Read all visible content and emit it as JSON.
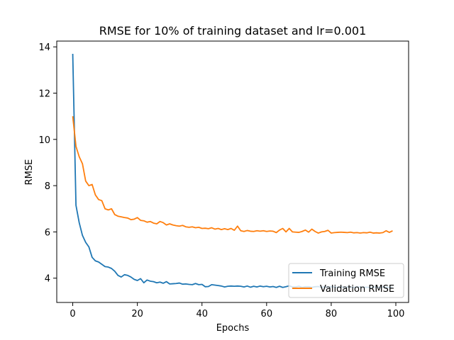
{
  "chart_data": {
    "type": "line",
    "title": "RMSE for 10% of training dataset and lr=0.001",
    "xlabel": "Epochs",
    "ylabel": "RMSE",
    "xlim": [
      -4.95,
      103.95
    ],
    "ylim": [
      2.95,
      14.25
    ],
    "xticks": [
      0,
      20,
      40,
      60,
      80,
      100
    ],
    "yticks": [
      4,
      6,
      8,
      10,
      12,
      14
    ],
    "grid": false,
    "legend_position": "lower-right",
    "x": [
      0,
      1,
      2,
      3,
      4,
      5,
      6,
      7,
      8,
      9,
      10,
      11,
      12,
      13,
      14,
      15,
      16,
      17,
      18,
      19,
      20,
      21,
      22,
      23,
      24,
      25,
      26,
      27,
      28,
      29,
      30,
      31,
      32,
      33,
      34,
      35,
      36,
      37,
      38,
      39,
      40,
      41,
      42,
      43,
      44,
      45,
      46,
      47,
      48,
      49,
      50,
      51,
      52,
      53,
      54,
      55,
      56,
      57,
      58,
      59,
      60,
      61,
      62,
      63,
      64,
      65,
      66,
      67,
      68,
      69,
      70,
      71,
      72,
      73,
      74,
      75,
      76,
      77,
      78,
      79,
      80,
      81,
      82,
      83,
      84,
      85,
      86,
      87,
      88,
      89,
      90,
      91,
      92,
      93,
      94,
      95,
      96,
      97,
      98,
      99
    ],
    "series": [
      {
        "name": "Training RMSE",
        "color": "#1f77b4",
        "values": [
          13.7,
          7.15,
          6.4,
          5.85,
          5.55,
          5.35,
          4.9,
          4.75,
          4.7,
          4.6,
          4.5,
          4.48,
          4.42,
          4.3,
          4.12,
          4.05,
          4.15,
          4.12,
          4.05,
          3.95,
          3.9,
          3.98,
          3.8,
          3.92,
          3.87,
          3.85,
          3.8,
          3.83,
          3.78,
          3.85,
          3.75,
          3.76,
          3.77,
          3.79,
          3.74,
          3.75,
          3.73,
          3.72,
          3.77,
          3.72,
          3.73,
          3.63,
          3.64,
          3.72,
          3.7,
          3.68,
          3.66,
          3.62,
          3.65,
          3.66,
          3.65,
          3.66,
          3.65,
          3.62,
          3.66,
          3.61,
          3.65,
          3.62,
          3.66,
          3.63,
          3.65,
          3.62,
          3.64,
          3.6,
          3.65,
          3.6,
          3.63,
          3.67,
          3.62,
          3.62,
          3.65,
          3.6,
          3.63,
          3.63,
          3.6,
          3.63,
          3.64,
          3.6,
          3.63,
          3.61,
          3.63,
          3.62,
          3.6,
          3.63,
          3.6,
          3.62,
          3.61,
          3.6,
          3.62,
          3.62,
          3.6,
          3.61,
          3.6,
          3.62,
          3.61,
          3.6,
          3.62,
          3.61,
          3.6,
          3.62
        ]
      },
      {
        "name": "Validation RMSE",
        "color": "#ff7f0e",
        "values": [
          11.0,
          9.7,
          9.25,
          8.95,
          8.2,
          8.0,
          8.05,
          7.6,
          7.4,
          7.35,
          7.0,
          6.95,
          7.0,
          6.75,
          6.68,
          6.65,
          6.62,
          6.6,
          6.53,
          6.55,
          6.62,
          6.5,
          6.48,
          6.42,
          6.45,
          6.38,
          6.35,
          6.45,
          6.4,
          6.3,
          6.35,
          6.3,
          6.27,
          6.25,
          6.28,
          6.22,
          6.2,
          6.22,
          6.18,
          6.2,
          6.15,
          6.16,
          6.14,
          6.18,
          6.12,
          6.15,
          6.1,
          6.14,
          6.1,
          6.15,
          6.07,
          6.25,
          6.05,
          6.02,
          6.06,
          6.03,
          6.02,
          6.05,
          6.03,
          6.05,
          6.02,
          6.04,
          6.03,
          5.97,
          6.08,
          6.15,
          6.0,
          6.15,
          6.0,
          5.99,
          5.98,
          6.02,
          6.08,
          5.99,
          6.12,
          6.02,
          5.95,
          6.0,
          6.02,
          6.07,
          5.95,
          5.97,
          5.98,
          5.99,
          5.98,
          5.97,
          5.99,
          5.96,
          5.97,
          5.95,
          5.97,
          5.96,
          5.99,
          5.95,
          5.96,
          5.95,
          5.97,
          6.05,
          5.98,
          6.05
        ]
      }
    ]
  }
}
